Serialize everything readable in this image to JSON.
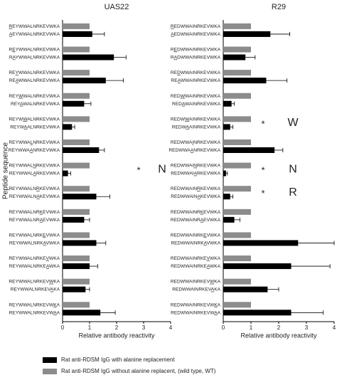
{
  "chart_data": [
    {
      "type": "bar",
      "orientation": "horizontal",
      "title": "UAS22",
      "ylabel": "Peptide sequence",
      "xlabel": "Relative antibody reactivity",
      "wt_sequence": "REYWWALNRKEVWKA",
      "categories": [
        "AEYWWALNRKEVWKA",
        "RAYWWALNRKEVWKA",
        "REAWWALNRKEVWKA",
        "REYAWALNRKEVWKA",
        "REYWAALNRKEVWKA",
        "REYWWAANRKEVWKA",
        "REYWWALARKEVWKA",
        "REYWWALNAKEVWKA",
        "REYWWALNRAEVWKA",
        "REYWWALNRKAVWKA",
        "REYWWALNRKEAWKA",
        "REYWWALNRKEVAKA",
        "REYWWALNRKEVWAA"
      ],
      "series": [
        {
          "name": "Rat anti-RDSM IgG with alanine replacement",
          "color": "#000000",
          "values": [
            1.1,
            1.9,
            1.6,
            0.8,
            0.35,
            1.35,
            0.2,
            1.25,
            0.8,
            1.25,
            1.0,
            0.85,
            1.4
          ],
          "errors": [
            0.45,
            0.45,
            0.65,
            0.25,
            0.1,
            0.2,
            0.1,
            0.5,
            0.2,
            0.35,
            0.3,
            0.15,
            0.55
          ]
        },
        {
          "name": "Rat anti-RDSM IgG without alanine replacent, (wild type, WT)",
          "color": "#8c8c8c",
          "values": [
            1,
            1,
            1,
            1,
            1,
            1,
            1,
            1,
            1,
            1,
            1,
            1,
            1
          ]
        }
      ],
      "annotations": [
        null,
        null,
        null,
        null,
        null,
        null,
        "*",
        null,
        null,
        null,
        null,
        null,
        null
      ],
      "annotation_letters": [
        null,
        null,
        null,
        null,
        null,
        null,
        "N",
        null,
        null,
        null,
        null,
        null,
        null
      ],
      "xlim": [
        0,
        4
      ],
      "xticks": [
        0,
        1,
        2,
        3,
        4
      ]
    },
    {
      "type": "bar",
      "orientation": "horizontal",
      "title": "R29",
      "xlabel": "Relative antibody reactivity",
      "wt_sequence": "REDWWAINRKEVWKA",
      "categories": [
        "AEDWWAINRKEVWKA",
        "RADWWAINRKEVWKA",
        "REAWWAINRKEVWKA",
        "REDAWAINRKEVWKA",
        "REDWAAINRKEVWKA",
        "REDWWAANRKEVWKA",
        "REDWWAIARKEVWKA",
        "REDWWAINAKEVWKA",
        "REDWWAINRAEVWKA",
        "REDWWAINRKAVWKA",
        "REDWWAINRKEAWKA",
        "REDWWAINRKEVAKA",
        "REDWWAINRKEVWAA"
      ],
      "series": [
        {
          "color": "#000000",
          "values": [
            1.7,
            0.8,
            1.55,
            0.3,
            0.25,
            1.85,
            0.1,
            0.25,
            0.4,
            2.7,
            2.45,
            1.6,
            2.45
          ],
          "errors": [
            0.7,
            0.35,
            0.75,
            0.1,
            0.1,
            0.3,
            0.05,
            0.1,
            0.2,
            1.3,
            1.4,
            0.4,
            1.15
          ]
        },
        {
          "color": "#8c8c8c",
          "values": [
            1,
            1,
            1,
            1,
            1,
            1,
            1,
            1,
            1,
            1,
            1,
            1,
            1
          ]
        }
      ],
      "annotations": [
        null,
        null,
        null,
        null,
        "*",
        null,
        "*",
        "*",
        null,
        null,
        null,
        null,
        null
      ],
      "annotation_letters": [
        null,
        null,
        null,
        null,
        "W",
        null,
        "N",
        "R",
        null,
        null,
        null,
        null,
        null
      ],
      "xlim": [
        0,
        4
      ],
      "xticks": [
        0,
        1,
        2,
        3,
        4
      ]
    }
  ]
}
